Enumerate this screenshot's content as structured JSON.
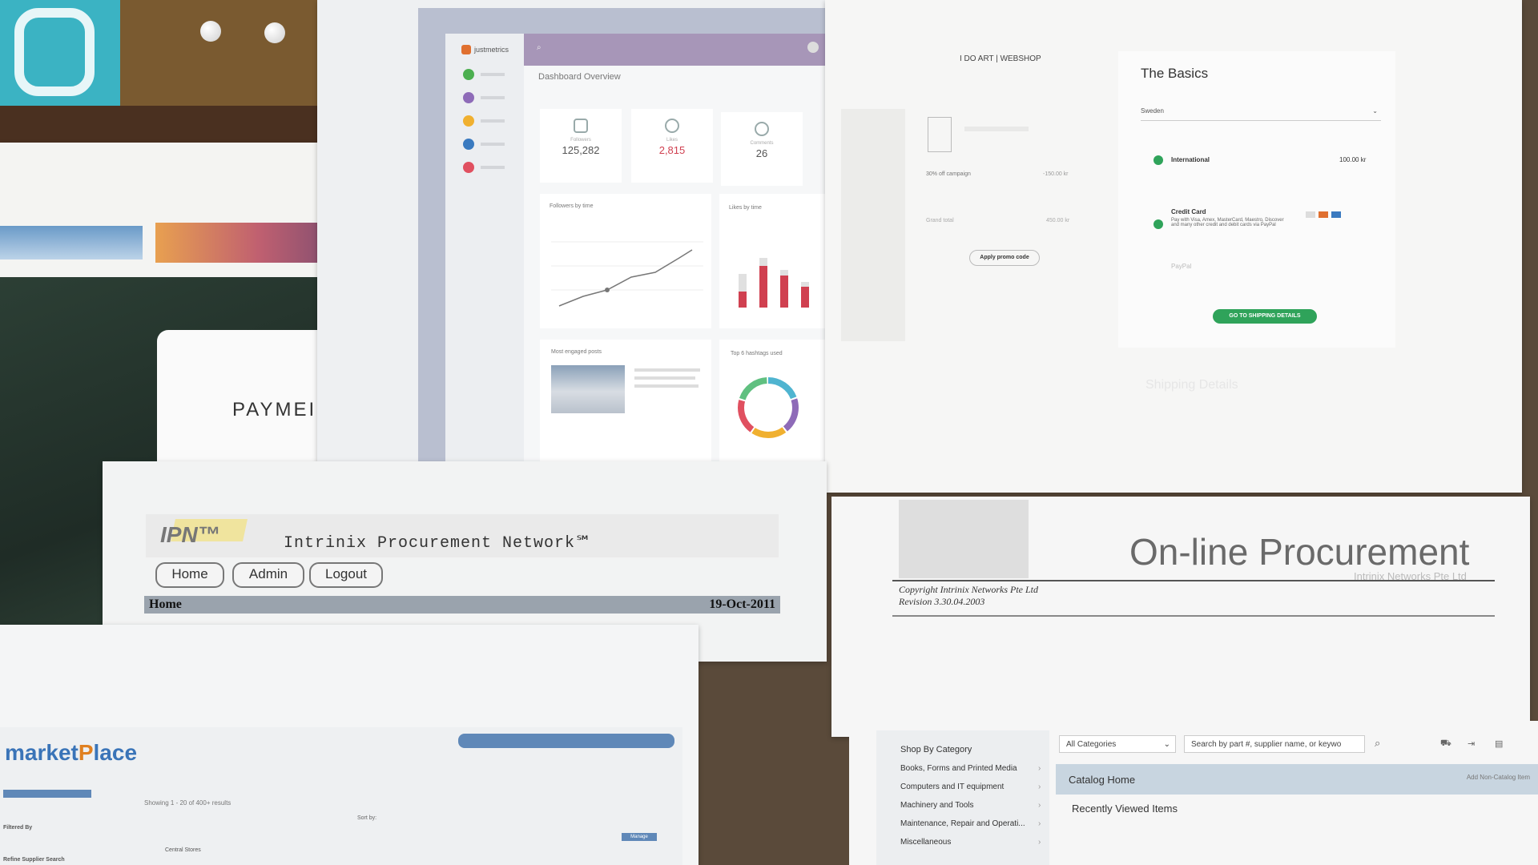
{
  "payment_card": {
    "text": "PAYMEI"
  },
  "dashboard": {
    "brand": "justmetrics",
    "title": "Dashboard Overview",
    "stats": [
      {
        "label": "Followers",
        "value": "125,282",
        "color": "#333333"
      },
      {
        "label": "Likes",
        "value": "2,815",
        "color": "#d04050"
      },
      {
        "label": "Comments",
        "value": "26",
        "color": "#333333"
      }
    ],
    "panels": {
      "followers_by_time": "Followers by time",
      "likes_by_time": "Likes by time",
      "most_engaged_posts": "Most engaged posts",
      "top_hashtags": "Top 6 hashtags used"
    },
    "side_colors": [
      "#4caf50",
      "#8e6bb8",
      "#f0b030",
      "#3a7ac0",
      "#e05060"
    ],
    "donut_colors": [
      "#4fb4d0",
      "#8e6bb8",
      "#f0b030",
      "#e05060",
      "#60c080"
    ]
  },
  "checkout": {
    "shop_title": "I DO ART | WEBSHOP",
    "section_title": "The Basics",
    "country": "Sweden",
    "shipping_option": "International",
    "shipping_price": "100.00 kr",
    "campaign": "30% off campaign",
    "campaign_value": "-150.00 kr",
    "grand_total": "Grand total",
    "grand_total_value": "450.00 kr",
    "promo_button": "Apply promo code",
    "payment_method": "Credit Card",
    "payment_desc": "Pay with Visa, Amex, MasterCard, Maestro, Discover and many other credit and debit cards via PayPal",
    "paypal": "PayPal",
    "continue_button": "GO TO SHIPPING DETAILS",
    "next_section": "Shipping Details"
  },
  "ipn": {
    "logo": "IPN™",
    "title": "Intrinix Procurement Network℠",
    "nav": [
      "Home",
      "Admin",
      "Logout"
    ],
    "breadcrumb": "Home",
    "date": "19-Oct-2011"
  },
  "procurement": {
    "title": "On-line Procurement",
    "subtitle": "Intrinix Networks Pte Ltd",
    "copyright": "Copyright Intrinix Networks Pte Ltd",
    "revision": "Revision 3.30.04.2003"
  },
  "marketplace": {
    "logo_a": "market",
    "logo_b": "P",
    "logo_c": "lace",
    "showing": "Showing 1 - 20 of 400+ results",
    "sort_by": "Sort by:",
    "filtered_by": "Filtered By",
    "refine": "Refine Supplier Search",
    "row_name": "Central Stores",
    "manage": "Manage"
  },
  "catalog": {
    "shop_by_category": "Shop By Category",
    "categories": [
      "Books, Forms and Printed Media",
      "Computers and IT equipment",
      "Machinery and Tools",
      "Maintenance, Repair and Operati...",
      "Miscellaneous"
    ],
    "category_select": "All Categories",
    "search_placeholder": "Search by part #, supplier name, or keywo",
    "catalog_home": "Catalog Home",
    "add_non_catalog": "Add Non-Catalog Item",
    "recently_viewed": "Recently Viewed Items"
  }
}
